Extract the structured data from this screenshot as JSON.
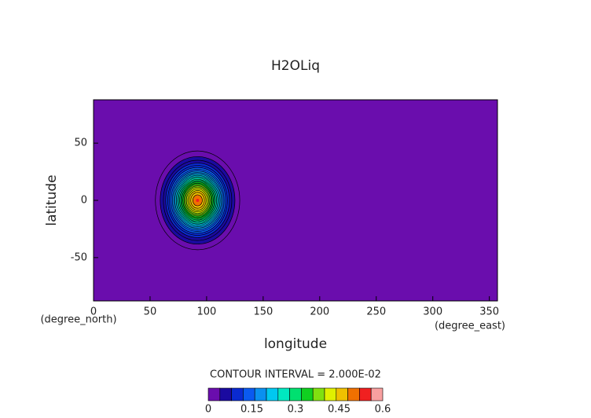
{
  "chart_data": {
    "type": "contour",
    "title": "H2OLiq",
    "xlabel": "longitude",
    "ylabel": "latitude",
    "xunit": "(degree_east)",
    "yunit": "(degree_north)",
    "xlim": [
      0,
      357.1875
    ],
    "ylim": [
      -87.86,
      87.86
    ],
    "xticks": [
      0,
      50,
      100,
      150,
      200,
      250,
      300,
      350
    ],
    "yticks": [
      -50,
      0,
      50
    ],
    "field": {
      "center": [
        92,
        0
      ],
      "peak": 0.5,
      "sigma": [
        14.7,
        17
      ]
    },
    "contour_interval": {
      "value": 0.02,
      "label": "CONTOUR INTERVAL = 2.000E-02"
    },
    "colorbar": {
      "levels": [
        0,
        0.04,
        0.08,
        0.12,
        0.16,
        0.2,
        0.24,
        0.28,
        0.32,
        0.36,
        0.4,
        0.44,
        0.48,
        0.52,
        0.56,
        0.6
      ],
      "colors": [
        "#6a0dad",
        "#1a0aa0",
        "#0a2ad0",
        "#0a5af0",
        "#0a90f0",
        "#00c8f0",
        "#00e8c0",
        "#00e070",
        "#10d020",
        "#80e010",
        "#e0f000",
        "#f0c000",
        "#f07000",
        "#f02020",
        "#f8a0a0"
      ],
      "ticks": [
        0,
        0.15,
        0.3,
        0.45,
        0.6
      ]
    }
  }
}
